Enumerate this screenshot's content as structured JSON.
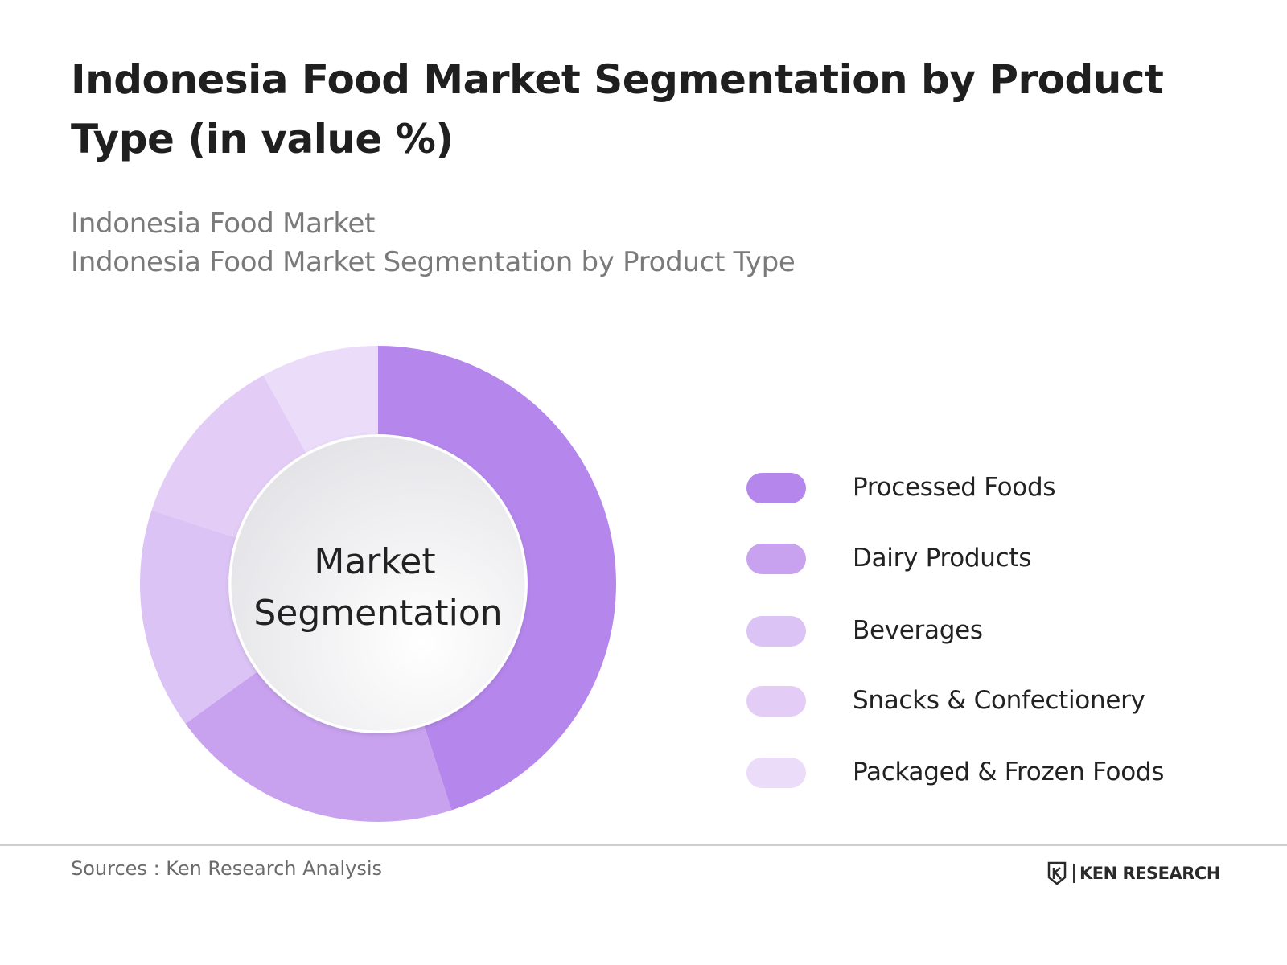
{
  "header": {
    "title": "Indonesia Food Market Segmentation by Product Type (in value %)",
    "subtitle_1": "Indonesia Food Market",
    "subtitle_2": "Indonesia Food Market Segmentation by Product Type"
  },
  "chart_data": {
    "type": "pie",
    "categories": [
      "Processed Foods",
      "Dairy Products",
      "Beverages",
      "Snacks & Confectionery",
      "Packaged & Frozen Foods"
    ],
    "values": [
      45,
      20,
      15,
      12,
      8
    ],
    "colors": [
      "#b586ec",
      "#c8a2ef",
      "#dbc3f5",
      "#e3cdf6",
      "#ebdcf9"
    ],
    "center_label": [
      "Market",
      "Segmentation"
    ],
    "legend_position": "right"
  },
  "footer": {
    "source": "Sources : Ken Research Analysis",
    "brand": "KEN RESEARCH",
    "brand_icon": "ken-research-logo-icon"
  }
}
